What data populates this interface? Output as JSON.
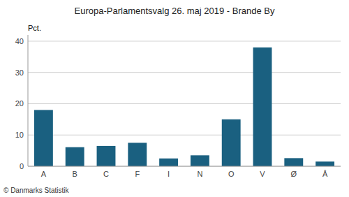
{
  "chart_data": {
    "type": "bar",
    "title": "Europa-Parlamentsvalg 26. maj 2019 - Brande By",
    "categories": [
      "A",
      "B",
      "C",
      "F",
      "I",
      "N",
      "O",
      "V",
      "Ø",
      "Å"
    ],
    "values": [
      18.0,
      6.1,
      6.5,
      7.5,
      2.5,
      3.5,
      15.0,
      38.0,
      2.6,
      1.5
    ],
    "color": "#1a6080",
    "ylabel": "Pct.",
    "footer": "© Danmarks Statistik",
    "ylim": [
      0,
      42
    ],
    "yticks": [
      0,
      10,
      20,
      30,
      40
    ],
    "grid": true
  }
}
